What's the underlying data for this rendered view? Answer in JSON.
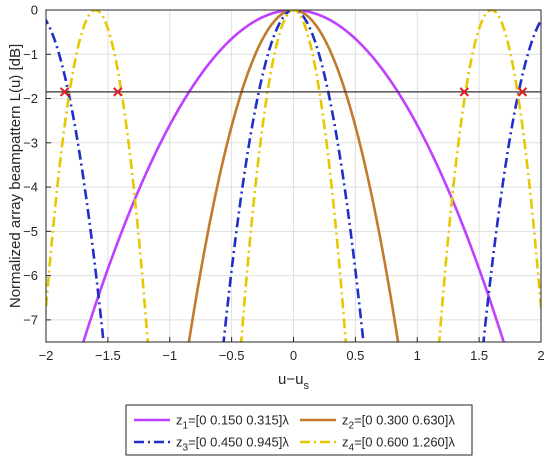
{
  "chart_data": {
    "type": "line",
    "title": "",
    "xlabel": "u−u",
    "xlabel_sub": "s",
    "ylabel": "Normalized array beampattern L(u) [dB]",
    "xlim": [
      -2,
      2
    ],
    "ylim": [
      -7.5,
      0
    ],
    "grid": true,
    "x_ticks": [
      -2,
      -1.5,
      -1,
      -0.5,
      0,
      0.5,
      1,
      1.5,
      2
    ],
    "x_tick_labels": [
      "−2",
      "−1.5",
      "−1",
      "−0.5",
      "0",
      "0.5",
      "1",
      "1.5",
      "2"
    ],
    "y_ticks": [
      0,
      -1,
      -2,
      -3,
      -4,
      -5,
      -6,
      -7
    ],
    "y_tick_labels": [
      "0",
      "−1",
      "−2",
      "−3",
      "−4",
      "−5",
      "−6",
      "−7"
    ],
    "threshold": {
      "y": -1.85,
      "color": "#333333"
    },
    "markers": [
      {
        "x": -1.85,
        "y": -1.85
      },
      {
        "x": -1.42,
        "y": -1.85
      },
      {
        "x": 1.38,
        "y": -1.85
      },
      {
        "x": 1.85,
        "y": -1.85
      }
    ],
    "marker_color": "#e02020",
    "legend_position": "below-plot",
    "series": [
      {
        "name": "z1=[0 0.150 0.315]λ",
        "legend_main": "z",
        "legend_sub": "1",
        "legend_rest": "=[0 0.150 0.315]λ",
        "color": "#bf40ff",
        "dash": "solid",
        "peaks": [
          0
        ],
        "curvature": 2.6
      },
      {
        "name": "z2=[0 0.300 0.630]λ",
        "legend_main": "z",
        "legend_sub": "2",
        "legend_rest": "=[0 0.300 0.630]λ",
        "color": "#c27a2c",
        "dash": "solid",
        "peaks": [
          0
        ],
        "curvature": 10.5
      },
      {
        "name": "z3=[0 0.450 0.945]λ",
        "legend_main": "z",
        "legend_sub": "3",
        "legend_rest": "=[0 0.450 0.945]λ",
        "color": "#1f2fc8",
        "dash": "dashdot",
        "peaks": [
          -2.1,
          0,
          2.1
        ],
        "curvature": 23.5
      },
      {
        "name": "z4=[0 0.600 1.260]λ",
        "legend_main": "z",
        "legend_sub": "4",
        "legend_rest": "=[0 0.600 1.260]λ",
        "color": "#e6c800",
        "dash": "dashdot",
        "peaks": [
          -1.6,
          0,
          1.6
        ],
        "curvature": 42
      }
    ]
  }
}
